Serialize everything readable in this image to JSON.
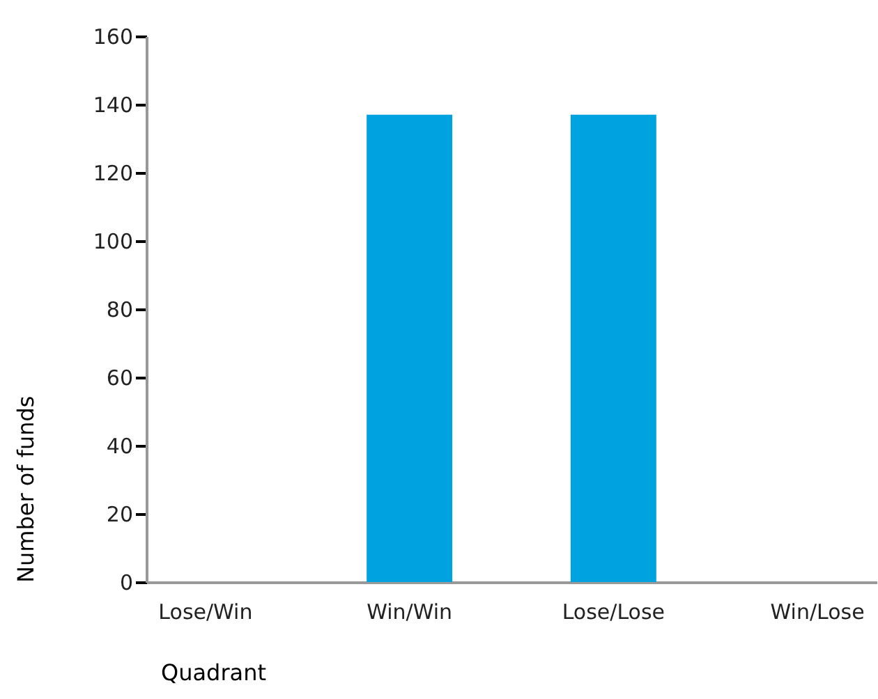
{
  "chart_data": {
    "type": "bar",
    "xlabel": "Quadrant",
    "ylabel": "Number of funds",
    "categories": [
      "Lose/Win",
      "Win/Win",
      "Lose/Lose",
      "Win/Lose"
    ],
    "values": [
      0,
      137,
      137,
      0
    ],
    "color": "#00a3e0",
    "ylim": [
      0,
      160
    ],
    "yticks": [
      0,
      20,
      40,
      60,
      80,
      100,
      120,
      140,
      160
    ],
    "grid": false
  }
}
